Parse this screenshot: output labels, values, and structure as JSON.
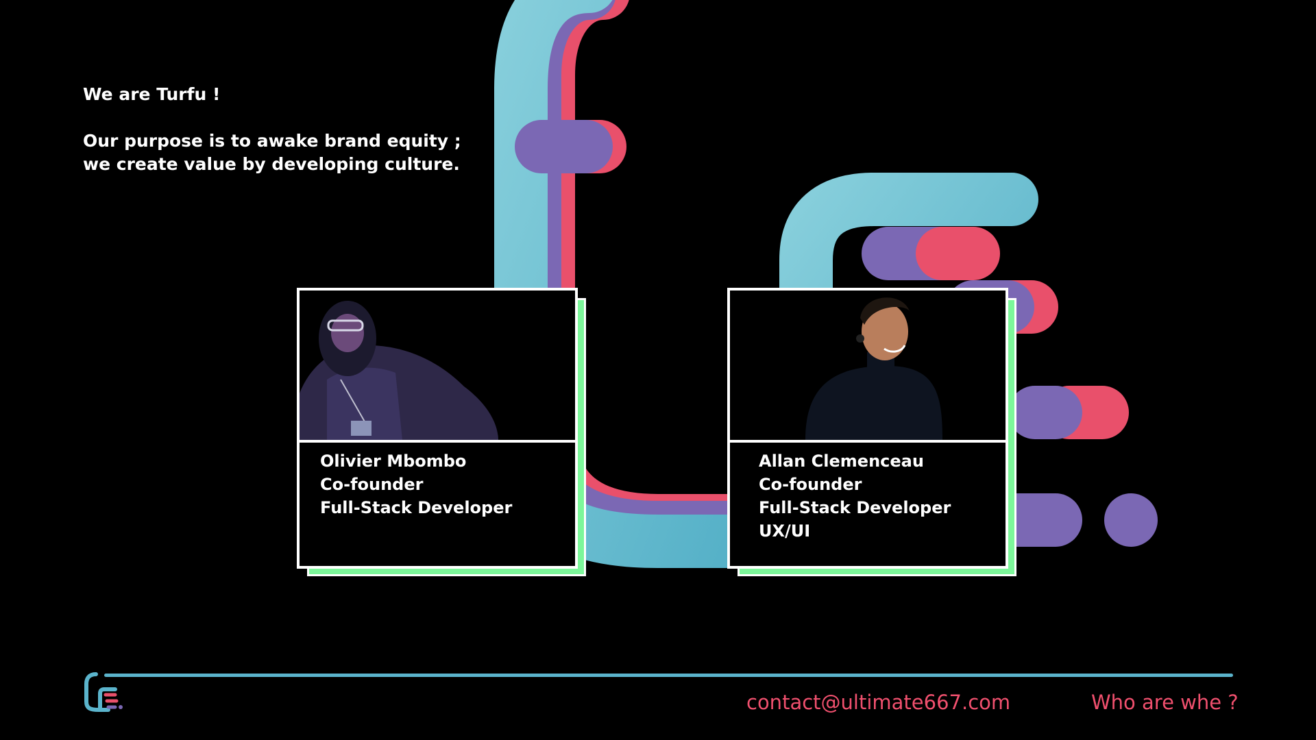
{
  "intro": {
    "greeting": "We are Turfu !",
    "purpose_line1": "Our purpose is to awake brand equity ;",
    "purpose_line2": "we create value by developing culture."
  },
  "team": [
    {
      "name": "Olivier Mbombo",
      "role": "Co-founder",
      "title": "Full-Stack Developer"
    },
    {
      "name": "Allan Clemenceau",
      "role": "Co-founder",
      "title": "Full-Stack Developer",
      "extra": "UX/UI"
    }
  ],
  "footer": {
    "contact": "contact@ultimate667.com",
    "nav_label": "Who are whe ?"
  },
  "colors": {
    "background": "#000000",
    "cyan": "#5BB4CC",
    "purple": "#7B68B4",
    "red": "#E9506B",
    "green": "#7CF79A",
    "accent_text": "#F0506E"
  }
}
